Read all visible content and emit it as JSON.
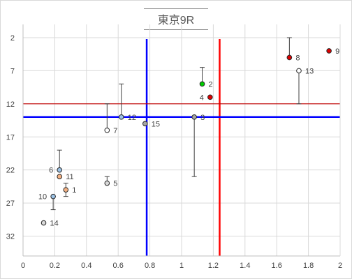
{
  "chart_data": {
    "type": "scatter",
    "title": "東京9R",
    "xlabel": "",
    "ylabel": "",
    "xlim": [
      0,
      2
    ],
    "ylim": [
      0,
      35
    ],
    "y_reversed": true,
    "grid": true,
    "x_ticks": [
      "0",
      "0.2",
      "0.4",
      "0.6",
      "0.8",
      "1",
      "1.2",
      "1.4",
      "1.6",
      "1.8",
      "2"
    ],
    "y_ticks": [
      "2",
      "7",
      "12",
      "17",
      "22",
      "27",
      "32"
    ],
    "reference_lines": [
      {
        "orientation": "vertical",
        "value": 0.78,
        "color": "#0000ff"
      },
      {
        "orientation": "vertical",
        "value": 1.24,
        "color": "#ff0000"
      },
      {
        "orientation": "horizontal",
        "value": 12,
        "color": "#c00000"
      },
      {
        "orientation": "horizontal",
        "value": 14,
        "color": "#0000ff"
      }
    ],
    "points": [
      {
        "label": "1",
        "x": 0.27,
        "y": 25,
        "color": "#f4b183",
        "err_low": 24,
        "err_high": 26
      },
      {
        "label": "2",
        "x": 1.13,
        "y": 9,
        "color": "#00cc00",
        "err_low": 6.5,
        "err_high": 9
      },
      {
        "label": "3",
        "x": 1.08,
        "y": 14,
        "color": "#a6a6a6",
        "err_low": 14,
        "err_high": 23
      },
      {
        "label": "4",
        "x": 1.18,
        "y": 11,
        "color": "#e00000"
      },
      {
        "label": "5",
        "x": 0.53,
        "y": 24,
        "color": "#d9d9d9",
        "err_low": 23,
        "err_high": 24
      },
      {
        "label": "6",
        "x": 0.23,
        "y": 22,
        "color": "#9dc3e6",
        "err_low": 19,
        "err_high": 22
      },
      {
        "label": "7",
        "x": 0.53,
        "y": 16,
        "color": "#ffffff",
        "err_low": 12,
        "err_high": 16
      },
      {
        "label": "8",
        "x": 1.68,
        "y": 5,
        "color": "#e00000",
        "err_low": 2,
        "err_high": 5
      },
      {
        "label": "9",
        "x": 1.93,
        "y": 4,
        "color": "#e00000"
      },
      {
        "label": "10",
        "x": 0.19,
        "y": 26,
        "color": "#9dc3e6",
        "err_low": 26,
        "err_high": 28
      },
      {
        "label": "11",
        "x": 0.23,
        "y": 23,
        "color": "#f4b183"
      },
      {
        "label": "12",
        "x": 0.62,
        "y": 14,
        "color": "#9dc3e6",
        "err_low": 9,
        "err_high": 14
      },
      {
        "label": "13",
        "x": 1.74,
        "y": 7,
        "color": "#ffffff",
        "err_low": 7,
        "err_high": 12
      },
      {
        "label": "14",
        "x": 0.13,
        "y": 30,
        "color": "#d9d9d9"
      },
      {
        "label": "15",
        "x": 0.77,
        "y": 15,
        "color": "#a6a6a6"
      }
    ]
  }
}
